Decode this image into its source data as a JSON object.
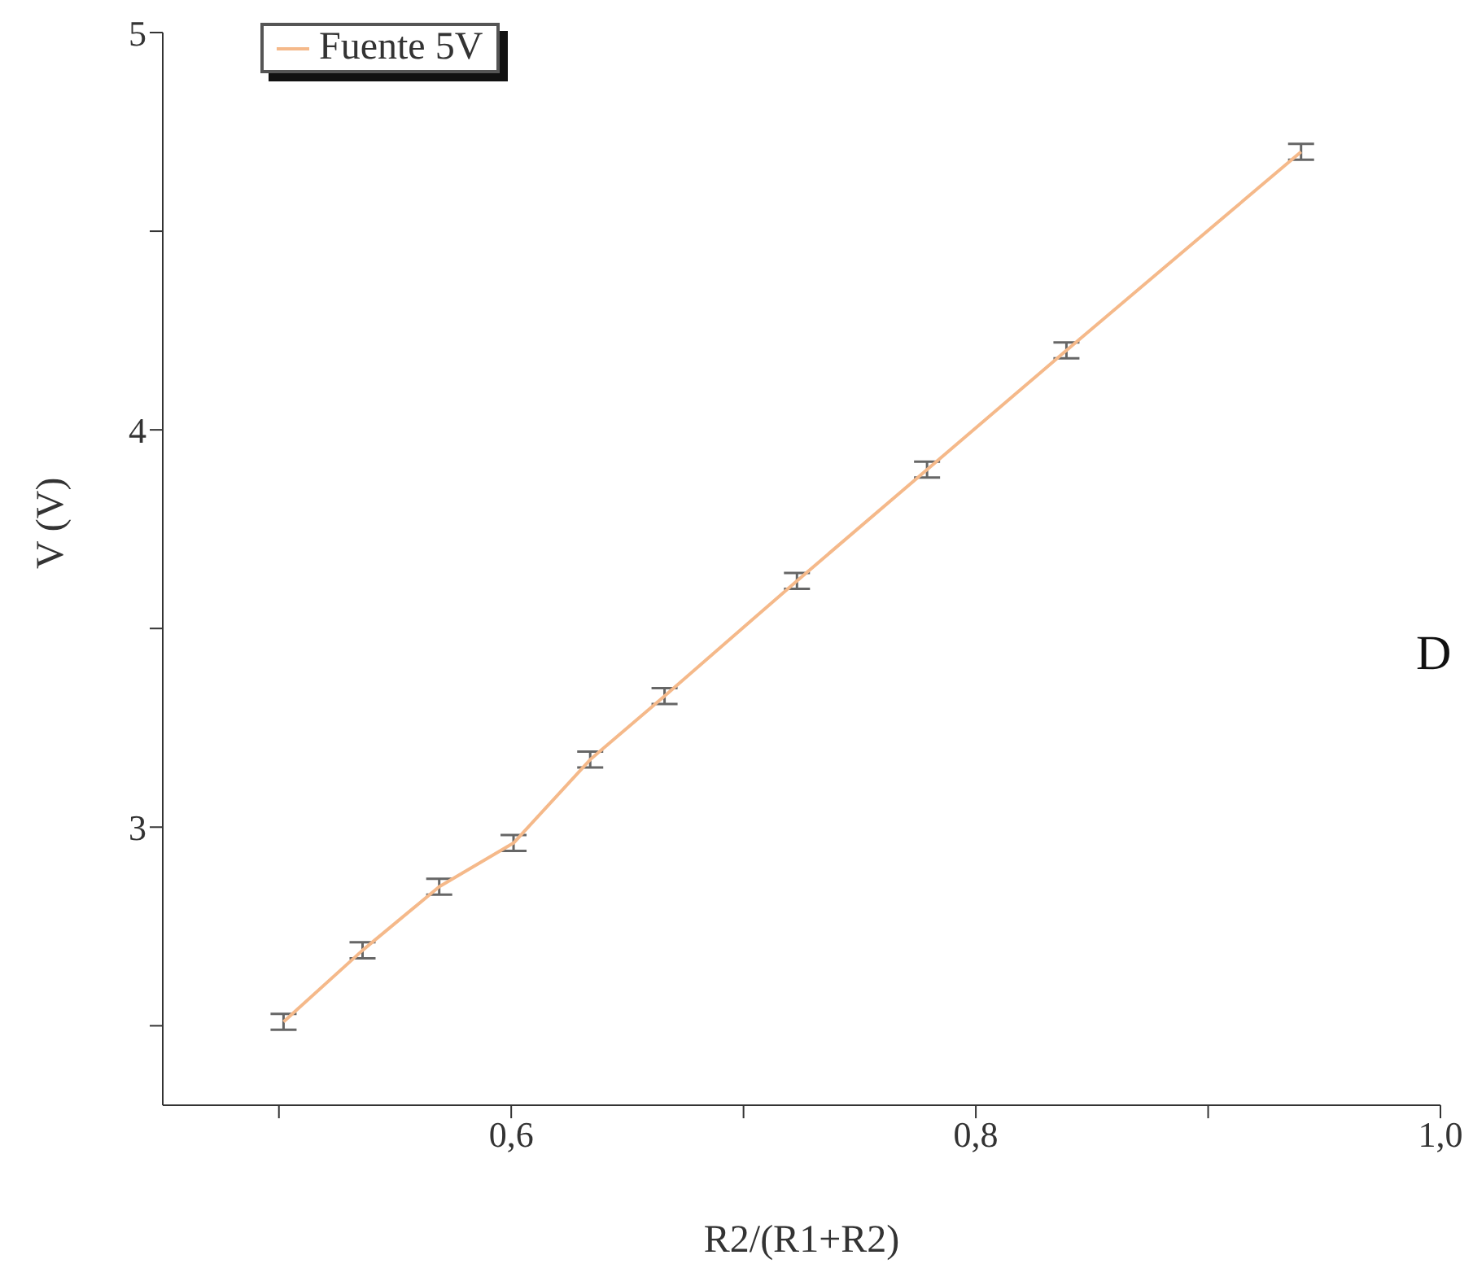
{
  "chart_data": {
    "type": "line",
    "xlabel": "R2/(R1+R2)",
    "ylabel": "V (V)",
    "x": [
      0.502,
      0.536,
      0.569,
      0.601,
      0.634,
      0.666,
      0.723,
      0.779,
      0.839,
      0.94
    ],
    "series": [
      {
        "name": "Fuente 5V",
        "color": "#f5b98a",
        "values": [
          2.51,
          2.69,
          2.85,
          2.96,
          3.17,
          3.33,
          3.62,
          3.9,
          4.2,
          4.7
        ],
        "errors": [
          0.02,
          0.02,
          0.02,
          0.02,
          0.02,
          0.02,
          0.02,
          0.02,
          0.02,
          0.02
        ]
      }
    ],
    "xlim": [
      0.45,
      1.0
    ],
    "ylim": [
      2.3,
      5
    ],
    "xticks": [
      {
        "value": 0.5,
        "label": null
      },
      {
        "value": 0.6,
        "label": "0,6"
      },
      {
        "value": 0.7,
        "label": null
      },
      {
        "value": 0.8,
        "label": "0,8"
      },
      {
        "value": 0.9,
        "label": null
      },
      {
        "value": 1.0,
        "label": "1,0"
      }
    ],
    "yticks": [
      {
        "value": 2.5,
        "label": null
      },
      3,
      {
        "value": 3.5,
        "label": null
      },
      4,
      {
        "value": 4.5,
        "label": null
      },
      5
    ],
    "grid": false,
    "legend": "top left",
    "marker": "none",
    "line_style": "solid",
    "annotations": [
      "D"
    ]
  }
}
